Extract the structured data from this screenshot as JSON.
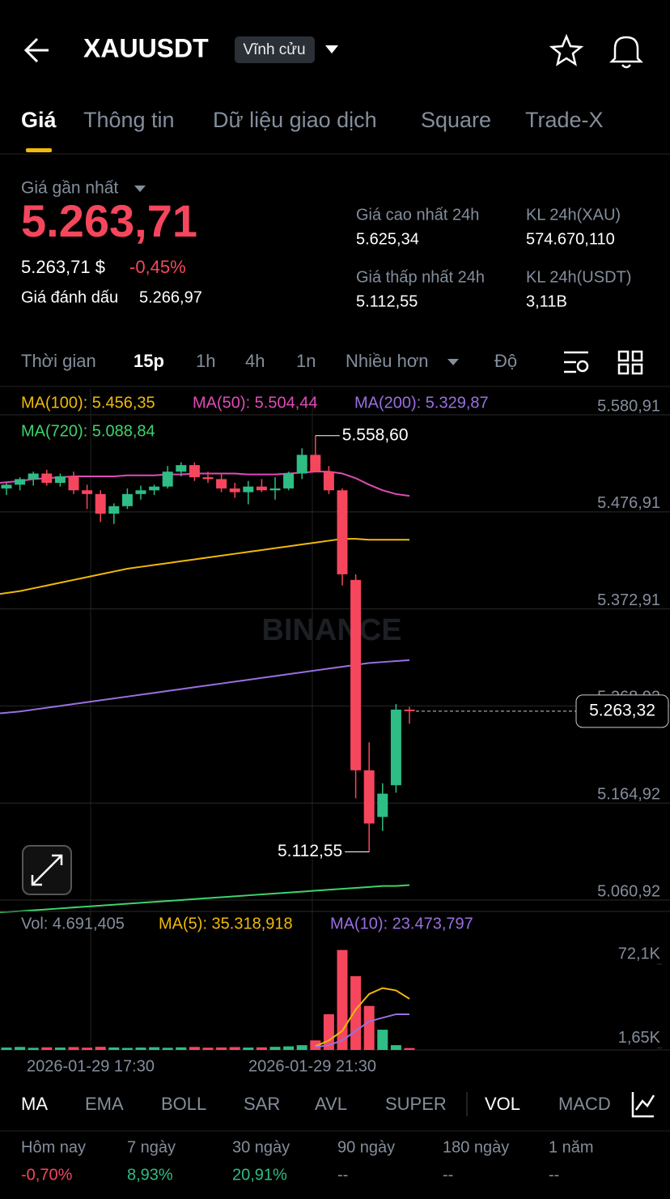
{
  "header": {
    "symbol": "XAUUSDT",
    "badge": "Vĩnh cửu"
  },
  "tabs": [
    "Giá",
    "Thông tin",
    "Dữ liệu giao dịch",
    "Square",
    "Trade-X"
  ],
  "summary": {
    "last_label": "Giá gần nhất",
    "last_price": "5.263,71",
    "usd_price": "5.263,71 $",
    "change": "-0,45%",
    "mark_label": "Giá đánh dấu",
    "mark_price": "5.266,97",
    "stats": [
      {
        "label": "Giá cao nhất 24h",
        "value": "5.625,34"
      },
      {
        "label": "KL 24h(XAU)",
        "value": "574.670,110"
      },
      {
        "label": "Giá thấp nhất 24h",
        "value": "5.112,55"
      },
      {
        "label": "KL 24h(USDT)",
        "value": "3,11B"
      }
    ]
  },
  "toolbar": [
    "Thời gian",
    "15p",
    "1h",
    "4h",
    "1n",
    "Nhiều hơn",
    "Độ"
  ],
  "chart": {
    "type": "candlestick",
    "watermark": "BINANCE",
    "ylim": [
      5048.8,
      5608.7
    ],
    "yticks": [
      {
        "value": 5580.91,
        "label": "5.580,91"
      },
      {
        "value": 5476.91,
        "label": "5.476,91"
      },
      {
        "value": 5372.91,
        "label": "5.372,91"
      },
      {
        "value": 5268.92,
        "label": "5.268,92"
      },
      {
        "value": 5164.92,
        "label": "5.164,92"
      },
      {
        "value": 5060.92,
        "label": "5.060,92"
      }
    ],
    "xtick_labels": [
      "2026-01-29 17:30",
      "2026-01-29 21:30"
    ],
    "up_color": "#2ebd85",
    "down_color": "#f6465d",
    "candles": {
      "open": [
        5502,
        5506,
        5512,
        5518,
        5508,
        5515,
        5500,
        5496,
        5475,
        5483,
        5496,
        5500,
        5504,
        5520,
        5527,
        5514,
        5512,
        5502,
        5498,
        5504,
        5500,
        5502,
        5518,
        5538,
        5520,
        5500,
        5404,
        5200,
        5150,
        5184,
        5265
      ],
      "high": [
        5508,
        5514,
        5520,
        5522,
        5518,
        5520,
        5506,
        5500,
        5486,
        5502,
        5505,
        5506,
        5526,
        5530,
        5530,
        5520,
        5518,
        5508,
        5510,
        5512,
        5514,
        5520,
        5545,
        5558.6,
        5526,
        5502,
        5410,
        5230,
        5186,
        5271,
        5268
      ],
      "low": [
        5495,
        5500,
        5505,
        5505,
        5504,
        5496,
        5480,
        5466,
        5464,
        5480,
        5490,
        5495,
        5502,
        5515,
        5510,
        5508,
        5498,
        5492,
        5485,
        5498,
        5490,
        5500,
        5512,
        5530,
        5496,
        5398,
        5170,
        5112.55,
        5135,
        5176,
        5250
      ],
      "close": [
        5506,
        5512,
        5518,
        5508,
        5515,
        5500,
        5496,
        5475,
        5483,
        5496,
        5500,
        5504,
        5520,
        5527,
        5514,
        5512,
        5502,
        5498,
        5504,
        5500,
        5502,
        5518,
        5538,
        5520,
        5500,
        5410,
        5200,
        5143,
        5175,
        5265,
        5263.32
      ]
    },
    "ma_lines": [
      {
        "label": "MA(100): 5.456,35",
        "color": "#f0b90b",
        "values": [
          5389,
          5392,
          5395,
          5398,
          5401,
          5404,
          5407,
          5410,
          5413,
          5416,
          5418,
          5420,
          5422,
          5424,
          5426,
          5428,
          5430,
          5432,
          5434,
          5436,
          5438,
          5440,
          5442,
          5444,
          5446,
          5448,
          5448,
          5447,
          5447,
          5447,
          5447
        ]
      },
      {
        "label": "MA(50): 5.504,44",
        "color": "#e04bb8",
        "values": [
          5508,
          5510,
          5512,
          5513,
          5514,
          5515,
          5515,
          5515,
          5515,
          5516,
          5516,
          5516,
          5517,
          5517,
          5518,
          5518,
          5518,
          5518,
          5517,
          5517,
          5517,
          5518,
          5519,
          5520,
          5520,
          5518,
          5513,
          5506,
          5500,
          5496,
          5494
        ]
      },
      {
        "label": "MA(200): 5.329,87",
        "color": "#9a6fe0",
        "values": [
          5261,
          5263,
          5265,
          5267,
          5269,
          5271,
          5273,
          5275,
          5277,
          5279,
          5281,
          5283,
          5285,
          5287,
          5289,
          5291,
          5293,
          5295,
          5297,
          5299,
          5301,
          5303,
          5305,
          5307,
          5309,
          5311,
          5313,
          5315,
          5316,
          5317,
          5318
        ]
      },
      {
        "label": "MA(720): 5.088,84",
        "color": "#3ed36b",
        "values": [
          5048,
          5049,
          5050,
          5051,
          5052,
          5053,
          5054,
          5055,
          5056,
          5057,
          5058,
          5059,
          5060,
          5061,
          5062,
          5063,
          5064,
          5065,
          5066,
          5067,
          5068,
          5069,
          5070,
          5071,
          5072,
          5073,
          5074,
          5075,
          5076,
          5076,
          5077
        ]
      }
    ],
    "last_price": {
      "value": 5263.32,
      "label": "5.263,32"
    },
    "max_marker": {
      "value": 5558.6,
      "label": "5.558,60"
    },
    "min_marker": {
      "value": 5112.55,
      "label": "5.112,55"
    },
    "volume": {
      "legend": "Vol: 4.691,405",
      "ylim": [
        0,
        96
      ],
      "yticks": [
        {
          "value": 72.1,
          "label": "72,1K"
        },
        {
          "value": 1.65,
          "label": "1,65K"
        }
      ],
      "values": [
        2,
        2.5,
        1.8,
        2.2,
        2,
        2.4,
        1.9,
        2.6,
        2.1,
        1.7,
        2,
        2.3,
        1.8,
        2.2,
        2.5,
        1.9,
        2.1,
        2.4,
        2,
        2.2,
        2.6,
        3,
        4,
        8,
        30,
        84,
        62,
        37,
        17,
        4,
        1.6
      ],
      "ma": [
        {
          "label": "MA(5): 35.318,918",
          "color": "#f0b90b",
          "values": [
            null,
            null,
            null,
            null,
            null,
            null,
            null,
            null,
            null,
            null,
            null,
            null,
            null,
            null,
            null,
            null,
            null,
            null,
            null,
            null,
            null,
            null,
            null,
            3,
            8,
            16,
            34,
            47,
            52,
            50,
            43
          ]
        },
        {
          "label": "MA(10): 23.473,797",
          "color": "#9a6fe0",
          "values": [
            null,
            null,
            null,
            null,
            null,
            null,
            null,
            null,
            null,
            null,
            null,
            null,
            null,
            null,
            null,
            null,
            null,
            null,
            null,
            null,
            null,
            null,
            null,
            2.5,
            4,
            8,
            16,
            24,
            27,
            30,
            30
          ]
        }
      ]
    }
  },
  "indicators": [
    "MA",
    "EMA",
    "BOLL",
    "SAR",
    "AVL",
    "SUPER",
    "VOL",
    "MACD"
  ],
  "performance": [
    {
      "label": "Hôm nay",
      "value": "-0,70%"
    },
    {
      "label": "7 ngày",
      "value": "8,93%"
    },
    {
      "label": "30 ngày",
      "value": "20,91%"
    },
    {
      "label": "90 ngày",
      "value": "--"
    },
    {
      "label": "180 ngày",
      "value": "--"
    },
    {
      "label": "1 năm",
      "value": "--"
    }
  ]
}
